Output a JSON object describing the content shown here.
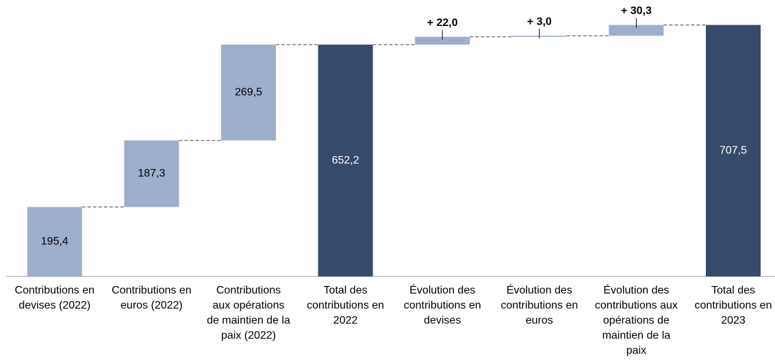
{
  "chart_data": {
    "type": "waterfall",
    "categories": [
      "Contributions en devises (2022)",
      "Contributions en euros (2022)",
      "Contributions aux opérations de maintien de la paix (2022)",
      "Total des contributions en 2022",
      "Évolution des contributions en devises",
      "Évolution des contributions en euros",
      "Évolution des contributions aux opérations de maintien de la paix",
      "Total des contributions en 2023"
    ],
    "values": [
      195.4,
      187.3,
      269.5,
      652.2,
      22.0,
      3.0,
      30.3,
      707.5
    ],
    "value_labels": [
      "195,4",
      "187,3",
      "269,5",
      "652,2",
      "+ 22,0",
      "+ 3,0",
      "+ 30,3",
      "707,5"
    ],
    "bar_kinds": [
      "delta",
      "delta",
      "delta",
      "total",
      "delta",
      "delta",
      "delta",
      "total"
    ],
    "colors": [
      "#9dafcc",
      "#9dafcc",
      "#9dafcc",
      "#364a6b",
      "#9dafcc",
      "#9dafcc",
      "#9dafcc",
      "#364a6b"
    ],
    "ylim": [
      0,
      720
    ]
  }
}
